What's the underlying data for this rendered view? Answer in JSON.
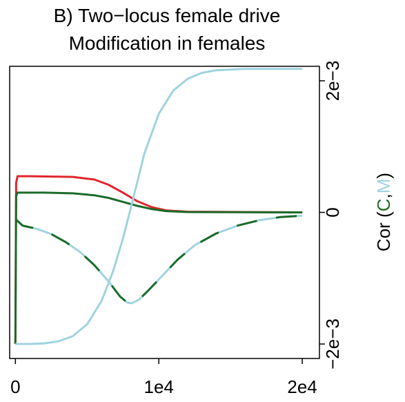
{
  "chart_data": {
    "type": "line",
    "title": "B) Two−locus female drive",
    "subtitle": "Modification in females",
    "xlabel": "",
    "ylabel": {
      "prefix": "Cor (",
      "c_label": "C",
      "separator": ",",
      "m_label": "M",
      "suffix": ")",
      "c_color": "#1a6b2a",
      "m_color": "#9fd3df"
    },
    "xlim": [
      -400,
      21200
    ],
    "ylim": [
      -0.00222,
      0.00222
    ],
    "x_ticks": [
      0,
      10000,
      20000
    ],
    "x_tick_labels": [
      "0",
      "1e4",
      "2e4"
    ],
    "y_ticks": [
      -0.002,
      0,
      0.002
    ],
    "y_tick_labels": [
      "−2e−3",
      "0",
      "2e−3"
    ],
    "right_axis": true,
    "grid": false,
    "series": [
      {
        "color": "#e0262b",
        "style": "solid",
        "points": [
          [
            0,
            -0.002
          ],
          [
            50,
            0.00045
          ],
          [
            150,
            0.00055
          ],
          [
            1000,
            0.00055
          ],
          [
            4000,
            0.00054
          ],
          [
            5500,
            0.0005
          ],
          [
            6500,
            0.00042
          ],
          [
            7500,
            0.0003
          ],
          [
            8500,
            0.00017
          ],
          [
            9500,
            8e-05
          ],
          [
            10500,
            3e-05
          ],
          [
            12000,
            1e-05
          ],
          [
            20000,
            0.0
          ]
        ]
      },
      {
        "color": "#1a6b2a",
        "style": "solid",
        "points": [
          [
            0,
            -0.002
          ],
          [
            50,
            0.00025
          ],
          [
            150,
            0.0003
          ],
          [
            2000,
            0.0003
          ],
          [
            4000,
            0.00029
          ],
          [
            5500,
            0.00026
          ],
          [
            6500,
            0.00022
          ],
          [
            7500,
            0.00016
          ],
          [
            8500,
            0.0001
          ],
          [
            9500,
            5e-05
          ],
          [
            10500,
            2e-05
          ],
          [
            12000,
            5e-06
          ],
          [
            20000,
            0.0
          ]
        ]
      },
      {
        "color": "#9fd3df",
        "style": "solid",
        "points": [
          [
            0,
            -0.002
          ],
          [
            1000,
            -0.002
          ],
          [
            2000,
            -0.00199
          ],
          [
            3000,
            -0.00196
          ],
          [
            4000,
            -0.00188
          ],
          [
            5000,
            -0.0017
          ],
          [
            6000,
            -0.00135
          ],
          [
            6800,
            -0.0009
          ],
          [
            7500,
            -0.0004
          ],
          [
            8200,
            0.0002
          ],
          [
            9000,
            0.0009
          ],
          [
            10000,
            0.0015
          ],
          [
            11000,
            0.00185
          ],
          [
            12000,
            0.00203
          ],
          [
            13000,
            0.00212
          ],
          [
            14000,
            0.00216
          ],
          [
            16000,
            0.00218
          ],
          [
            20000,
            0.00218
          ]
        ]
      },
      {
        "color": "#9fd3df",
        "color2": "#1a6b2a",
        "style": "alternating",
        "points": [
          [
            0,
            -0.0001
          ],
          [
            500,
            -0.0002
          ],
          [
            1500,
            -0.00025
          ],
          [
            2500,
            -0.00033
          ],
          [
            3500,
            -0.00045
          ],
          [
            4500,
            -0.0006
          ],
          [
            5500,
            -0.0008
          ],
          [
            6500,
            -0.00105
          ],
          [
            7300,
            -0.00128
          ],
          [
            7800,
            -0.00137
          ],
          [
            8100,
            -0.00138
          ],
          [
            8600,
            -0.00133
          ],
          [
            9300,
            -0.00118
          ],
          [
            10300,
            -0.00095
          ],
          [
            11300,
            -0.00072
          ],
          [
            12500,
            -0.0005
          ],
          [
            14000,
            -0.00032
          ],
          [
            15500,
            -0.0002
          ],
          [
            17000,
            -0.00012
          ],
          [
            18500,
            -7e-05
          ],
          [
            20000,
            -5e-05
          ]
        ]
      }
    ]
  }
}
